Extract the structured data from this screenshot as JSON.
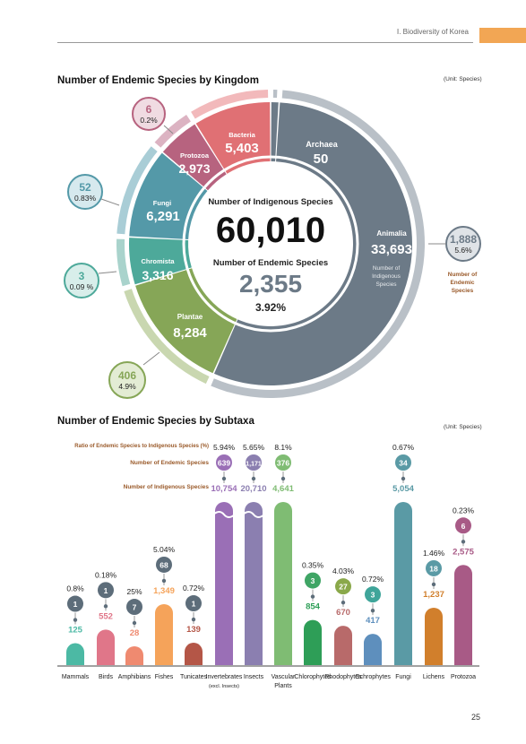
{
  "header": {
    "section": "Ⅰ. Biodiversity of Korea"
  },
  "page_number": "25",
  "kingdom": {
    "title": "Number of Endemic Species by Kingdom",
    "unit": "(Unit: Species)",
    "center": {
      "indigenous_label": "Number of Indigenous Species",
      "indigenous_total": "60,010",
      "endemic_label": "Number of Endemic Species",
      "endemic_total": "2,355",
      "ratio": "3.92%"
    },
    "animalia_sub1": "Number of",
    "animalia_sub2": "Indigenous",
    "animalia_sub3": "Species",
    "endemic_key1": "Number of",
    "endemic_key2": "Endemic",
    "endemic_key3": "Species",
    "colors": {
      "Animalia": "#6c7a87",
      "Plantae": "#86a657",
      "Chromista": "#4da99a",
      "Fungi": "#5499a8",
      "Protozoa": "#b7637f",
      "Bacteria": "#e07074",
      "Archaea": "#6c7a87"
    }
  },
  "chart_data": [
    {
      "type": "pie",
      "title": "Number of Endemic Species by Kingdom",
      "unit": "(Unit: Species)",
      "categories": [
        "Animalia",
        "Plantae",
        "Chromista",
        "Fungi",
        "Protozoa",
        "Bacteria",
        "Archaea"
      ],
      "series": [
        {
          "name": "Number of Indigenous Species",
          "values": [
            33693,
            8284,
            3316,
            6291,
            2973,
            5403,
            50
          ]
        },
        {
          "name": "Number of Endemic Species",
          "values": [
            1888,
            406,
            3,
            52,
            6,
            null,
            null
          ]
        }
      ],
      "endemic_ratio": [
        "5.6%",
        "4.9%",
        "0.09 %",
        "0.83%",
        "0.2%",
        null,
        null
      ],
      "display": {
        "indigenous": [
          "33,693",
          "8,284",
          "3,316",
          "6,291",
          "2,973",
          "5,403",
          "50"
        ],
        "endemic": [
          "1,888",
          "406",
          "3",
          "52",
          "6",
          null,
          null
        ]
      },
      "total_indigenous": 60010,
      "total_endemic": 2355,
      "total_ratio": "3.92%"
    },
    {
      "type": "bar",
      "title": "Number of Endemic Species by Subtaxa",
      "unit": "(Unit: Species)",
      "legend": [
        "Ratio of Endemic Species to Indigenous Species (%)",
        "Number of Endemic Species",
        "Number of Indigenous Species"
      ],
      "categories": [
        "Mammals",
        "Birds",
        "Amphibians",
        "Fishes",
        "Tunicates",
        "Invertebrates",
        "Insects",
        "Vascular",
        "Chlorophytes",
        "Rhodophytes",
        "Ochrophytes",
        "Fungi",
        "Lichens",
        "Protozoa"
      ],
      "category_sublabels": [
        "",
        "",
        "",
        "",
        "",
        "(excl. Insects)",
        "",
        "Plants",
        "",
        "",
        "",
        "",
        "",
        ""
      ],
      "series": [
        {
          "name": "Number of Indigenous Species",
          "values": [
            125,
            552,
            28,
            1349,
            139,
            10754,
            20710,
            4641,
            854,
            670,
            417,
            5054,
            1237,
            2575
          ]
        },
        {
          "name": "Number of Endemic Species",
          "values": [
            1,
            1,
            7,
            68,
            1,
            639,
            1171,
            376,
            3,
            27,
            3,
            34,
            18,
            6
          ]
        }
      ],
      "ratios": [
        "0.8%",
        "0.18%",
        "25%",
        "5.04%",
        "0.72%",
        "5.94%",
        "5.65%",
        "8.1%",
        "0.35%",
        "4.03%",
        "0.72%",
        "0.67%",
        "1.46%",
        "0.23%"
      ],
      "display": {
        "indigenous": [
          "125",
          "552",
          "28",
          "1,349",
          "139",
          "10,754",
          "20,710",
          "4,641",
          "854",
          "670",
          "417",
          "5,054",
          "1,237",
          "2,575"
        ],
        "endemic": [
          "1",
          "1",
          "7",
          "68",
          "1",
          "639",
          "1,171",
          "376",
          "3",
          "27",
          "3",
          "34",
          "18",
          "6"
        ]
      },
      "colors": [
        "#4cb9a4",
        "#e07689",
        "#ef8a70",
        "#f5a35a",
        "#b45647",
        "#9a6fb6",
        "#8b7fb0",
        "#7fbc73",
        "#2e9e57",
        "#b86a6a",
        "#5e8fbd",
        "#5a9aa5",
        "#d17f2c",
        "#a85a86"
      ],
      "endemic_colors": [
        "#5d6d7a",
        "#5d6d7a",
        "#5d6d7a",
        "#5d6d7a",
        "#5d6d7a",
        "#9a6fb6",
        "#8b7fb0",
        "#7fbc73",
        "#3fa565",
        "#8aa84a",
        "#3fa59a",
        "#5a9aa5",
        "#5a9aa5",
        "#a85a86"
      ]
    }
  ]
}
